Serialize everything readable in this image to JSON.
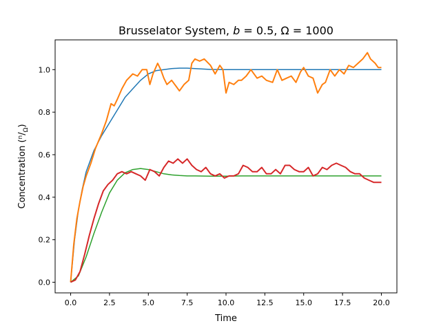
{
  "chart_data": {
    "type": "line",
    "title": "Brusselator System, b = 0.5, Ω = 1000",
    "xlabel": "Time",
    "ylabel": "Concentration (n/Ω)",
    "xlim": [
      -1.0,
      21.0
    ],
    "ylim": [
      -0.05,
      1.14
    ],
    "xticks": [
      0.0,
      2.5,
      5.0,
      7.5,
      10.0,
      12.5,
      15.0,
      17.5,
      20.0
    ],
    "xtick_labels": [
      "0.0",
      "2.5",
      "5.0",
      "7.5",
      "10.0",
      "12.5",
      "15.0",
      "17.5",
      "20.0"
    ],
    "yticks": [
      0.0,
      0.2,
      0.4,
      0.6,
      0.8,
      1.0
    ],
    "ytick_labels": [
      "0.0",
      "0.2",
      "0.4",
      "0.6",
      "0.8",
      "1.0"
    ],
    "grid": false,
    "series": [
      {
        "color": "#1f77b4",
        "x": [
          0,
          0.25,
          0.5,
          0.75,
          1.0,
          1.5,
          2.0,
          2.5,
          3.0,
          3.5,
          4.0,
          4.5,
          5.0,
          5.5,
          6.0,
          6.5,
          7.0,
          7.5,
          8.0,
          8.5,
          9.0,
          10.0,
          11.0,
          12.0,
          14.0,
          16.0,
          18.0,
          20.0
        ],
        "y": [
          0.0,
          0.2,
          0.34,
          0.44,
          0.52,
          0.62,
          0.69,
          0.75,
          0.81,
          0.87,
          0.91,
          0.95,
          0.98,
          0.995,
          1.0,
          1.005,
          1.007,
          1.007,
          1.005,
          1.003,
          1.001,
          1.0,
          1.0,
          1.0,
          1.0,
          1.0,
          1.0,
          1.0
        ]
      },
      {
        "color": "#ff7f0e",
        "x": [
          0,
          0.2,
          0.4,
          0.6,
          0.8,
          1.0,
          1.3,
          1.6,
          2.0,
          2.3,
          2.6,
          2.8,
          3.0,
          3.3,
          3.6,
          4.0,
          4.3,
          4.6,
          4.9,
          5.1,
          5.3,
          5.6,
          5.8,
          6.0,
          6.2,
          6.5,
          6.8,
          7.0,
          7.3,
          7.6,
          7.8,
          8.0,
          8.3,
          8.6,
          9.0,
          9.3,
          9.6,
          9.8,
          10.0,
          10.2,
          10.5,
          10.8,
          11.0,
          11.3,
          11.6,
          12.0,
          12.3,
          12.6,
          13.0,
          13.3,
          13.6,
          13.9,
          14.2,
          14.5,
          14.8,
          15.0,
          15.3,
          15.6,
          15.9,
          16.2,
          16.4,
          16.7,
          17.0,
          17.3,
          17.6,
          17.9,
          18.2,
          18.5,
          18.8,
          19.1,
          19.3,
          19.6,
          19.8,
          20.0
        ],
        "y": [
          0.0,
          0.18,
          0.3,
          0.38,
          0.45,
          0.5,
          0.56,
          0.63,
          0.7,
          0.76,
          0.84,
          0.83,
          0.86,
          0.91,
          0.95,
          0.98,
          0.97,
          1.0,
          1.0,
          0.93,
          0.98,
          1.03,
          1.0,
          0.96,
          0.93,
          0.95,
          0.92,
          0.9,
          0.93,
          0.95,
          1.03,
          1.05,
          1.04,
          1.05,
          1.02,
          0.98,
          1.02,
          1.0,
          0.89,
          0.94,
          0.93,
          0.95,
          0.95,
          0.97,
          1.0,
          0.96,
          0.97,
          0.95,
          0.94,
          1.0,
          0.95,
          0.96,
          0.97,
          0.94,
          0.99,
          1.01,
          0.97,
          0.96,
          0.89,
          0.93,
          0.94,
          1.0,
          0.97,
          1.0,
          0.98,
          1.02,
          1.01,
          1.03,
          1.05,
          1.08,
          1.05,
          1.03,
          1.01,
          1.01
        ]
      },
      {
        "color": "#2ca02c",
        "x": [
          0,
          0.5,
          1.0,
          1.5,
          2.0,
          2.5,
          3.0,
          3.5,
          4.0,
          4.5,
          5.0,
          5.5,
          6.0,
          6.5,
          7.0,
          7.5,
          8.0,
          9.0,
          10.0,
          11.0,
          12.0,
          14.0,
          16.0,
          18.0,
          20.0
        ],
        "y": [
          0.0,
          0.03,
          0.12,
          0.23,
          0.33,
          0.42,
          0.48,
          0.515,
          0.53,
          0.535,
          0.53,
          0.52,
          0.51,
          0.505,
          0.502,
          0.5,
          0.5,
          0.499,
          0.499,
          0.5,
          0.5,
          0.5,
          0.5,
          0.5,
          0.5
        ]
      },
      {
        "color": "#d62728",
        "x": [
          0,
          0.3,
          0.6,
          0.9,
          1.2,
          1.5,
          1.8,
          2.1,
          2.4,
          2.7,
          3.0,
          3.3,
          3.6,
          3.9,
          4.2,
          4.5,
          4.8,
          5.1,
          5.4,
          5.7,
          6.0,
          6.3,
          6.6,
          6.9,
          7.2,
          7.5,
          7.8,
          8.1,
          8.4,
          8.7,
          9.0,
          9.3,
          9.6,
          9.9,
          10.2,
          10.5,
          10.8,
          11.1,
          11.4,
          11.7,
          12.0,
          12.3,
          12.6,
          12.9,
          13.2,
          13.5,
          13.8,
          14.1,
          14.4,
          14.7,
          15.0,
          15.3,
          15.6,
          15.9,
          16.2,
          16.5,
          16.8,
          17.1,
          17.4,
          17.7,
          18.0,
          18.3,
          18.6,
          18.9,
          19.2,
          19.5,
          19.8,
          20.0
        ],
        "y": [
          0.0,
          0.01,
          0.05,
          0.13,
          0.22,
          0.3,
          0.37,
          0.43,
          0.46,
          0.48,
          0.51,
          0.52,
          0.51,
          0.52,
          0.51,
          0.5,
          0.48,
          0.53,
          0.52,
          0.5,
          0.54,
          0.57,
          0.56,
          0.58,
          0.56,
          0.58,
          0.55,
          0.53,
          0.52,
          0.54,
          0.51,
          0.5,
          0.51,
          0.49,
          0.5,
          0.5,
          0.51,
          0.55,
          0.54,
          0.52,
          0.52,
          0.54,
          0.51,
          0.51,
          0.53,
          0.51,
          0.55,
          0.55,
          0.53,
          0.52,
          0.52,
          0.54,
          0.5,
          0.51,
          0.54,
          0.53,
          0.55,
          0.56,
          0.55,
          0.54,
          0.52,
          0.51,
          0.51,
          0.49,
          0.48,
          0.47,
          0.47,
          0.47
        ]
      }
    ]
  }
}
